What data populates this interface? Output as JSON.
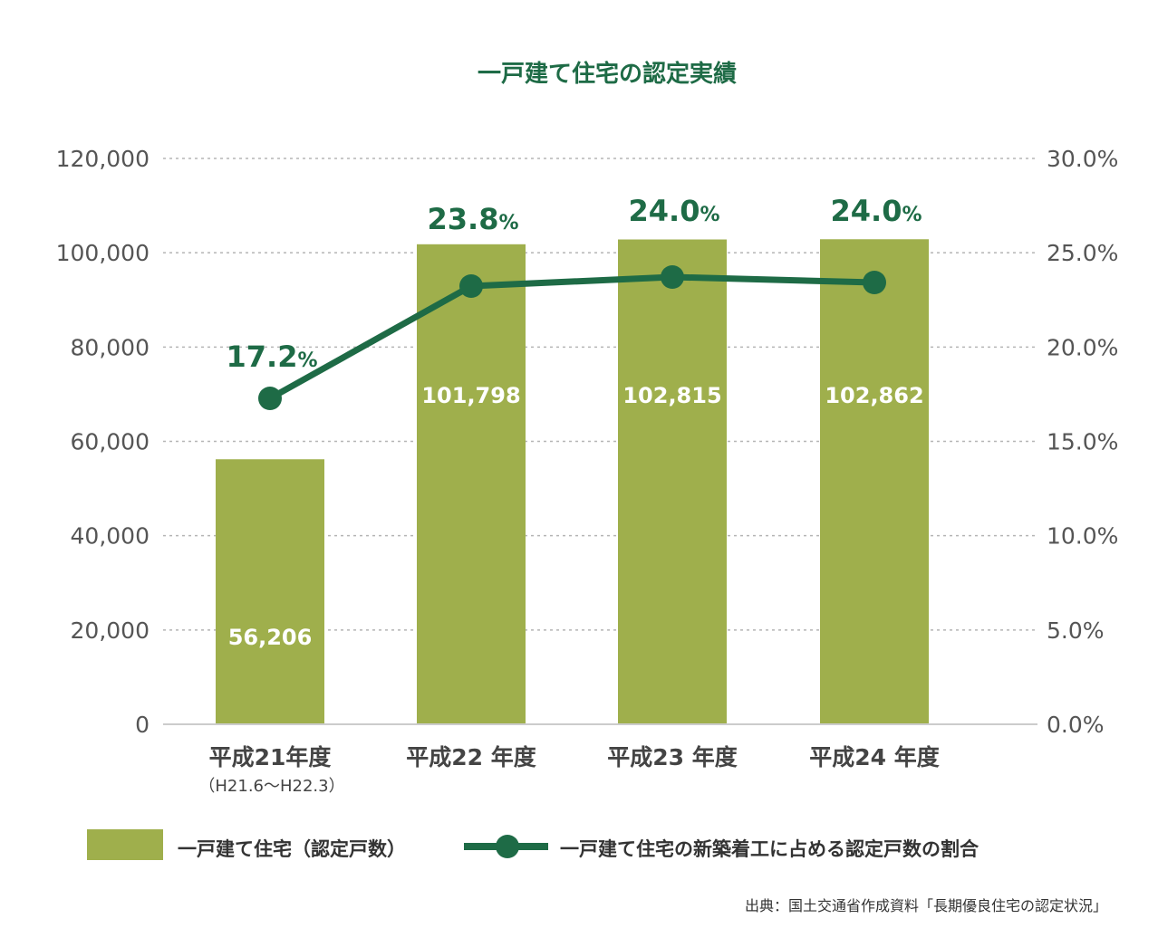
{
  "chart_data": {
    "type": "bar",
    "title": "一戸建て住宅の認定実績",
    "categories": [
      "平成21年度",
      "平成22 年度",
      "平成23 年度",
      "平成24 年度"
    ],
    "category_sublabels": [
      "（H21.6〜H22.3）",
      "",
      "",
      ""
    ],
    "series": [
      {
        "name": "一戸建て住宅（認定戸数）",
        "type": "bar",
        "axis": "left",
        "values": [
          56206,
          101798,
          102815,
          102862
        ],
        "labels": [
          "56,206",
          "101,798",
          "102,815",
          "102,862"
        ],
        "color": "#9faf4c"
      },
      {
        "name": "一戸建て住宅の新築着工に占める認定戸数の割合",
        "type": "line",
        "axis": "right",
        "values": [
          17.2,
          23.8,
          24.0,
          24.0
        ],
        "labels": [
          "17.2",
          "23.8",
          "24.0",
          "24.0"
        ],
        "label_unit": "%",
        "color": "#1e6b46"
      }
    ],
    "y_left": {
      "range": [
        0,
        120000
      ],
      "ticks": [
        0,
        20000,
        40000,
        60000,
        80000,
        100000,
        120000
      ],
      "tick_labels": [
        "0",
        "20,000",
        "40,000",
        "60,000",
        "80,000",
        "100,000",
        "120,000"
      ]
    },
    "y_right": {
      "range": [
        0,
        30
      ],
      "ticks": [
        0,
        5,
        10,
        15,
        20,
        25,
        30
      ],
      "tick_labels": [
        "0.0%",
        "5.0%",
        "10.0%",
        "15.0%",
        "20.0%",
        "25.0%",
        "30.0%"
      ]
    },
    "grid": true,
    "grid_style": "dotted",
    "legend_position": "bottom",
    "source": "出典：国土交通省作成資料「長期優良住宅の認定状況」"
  }
}
